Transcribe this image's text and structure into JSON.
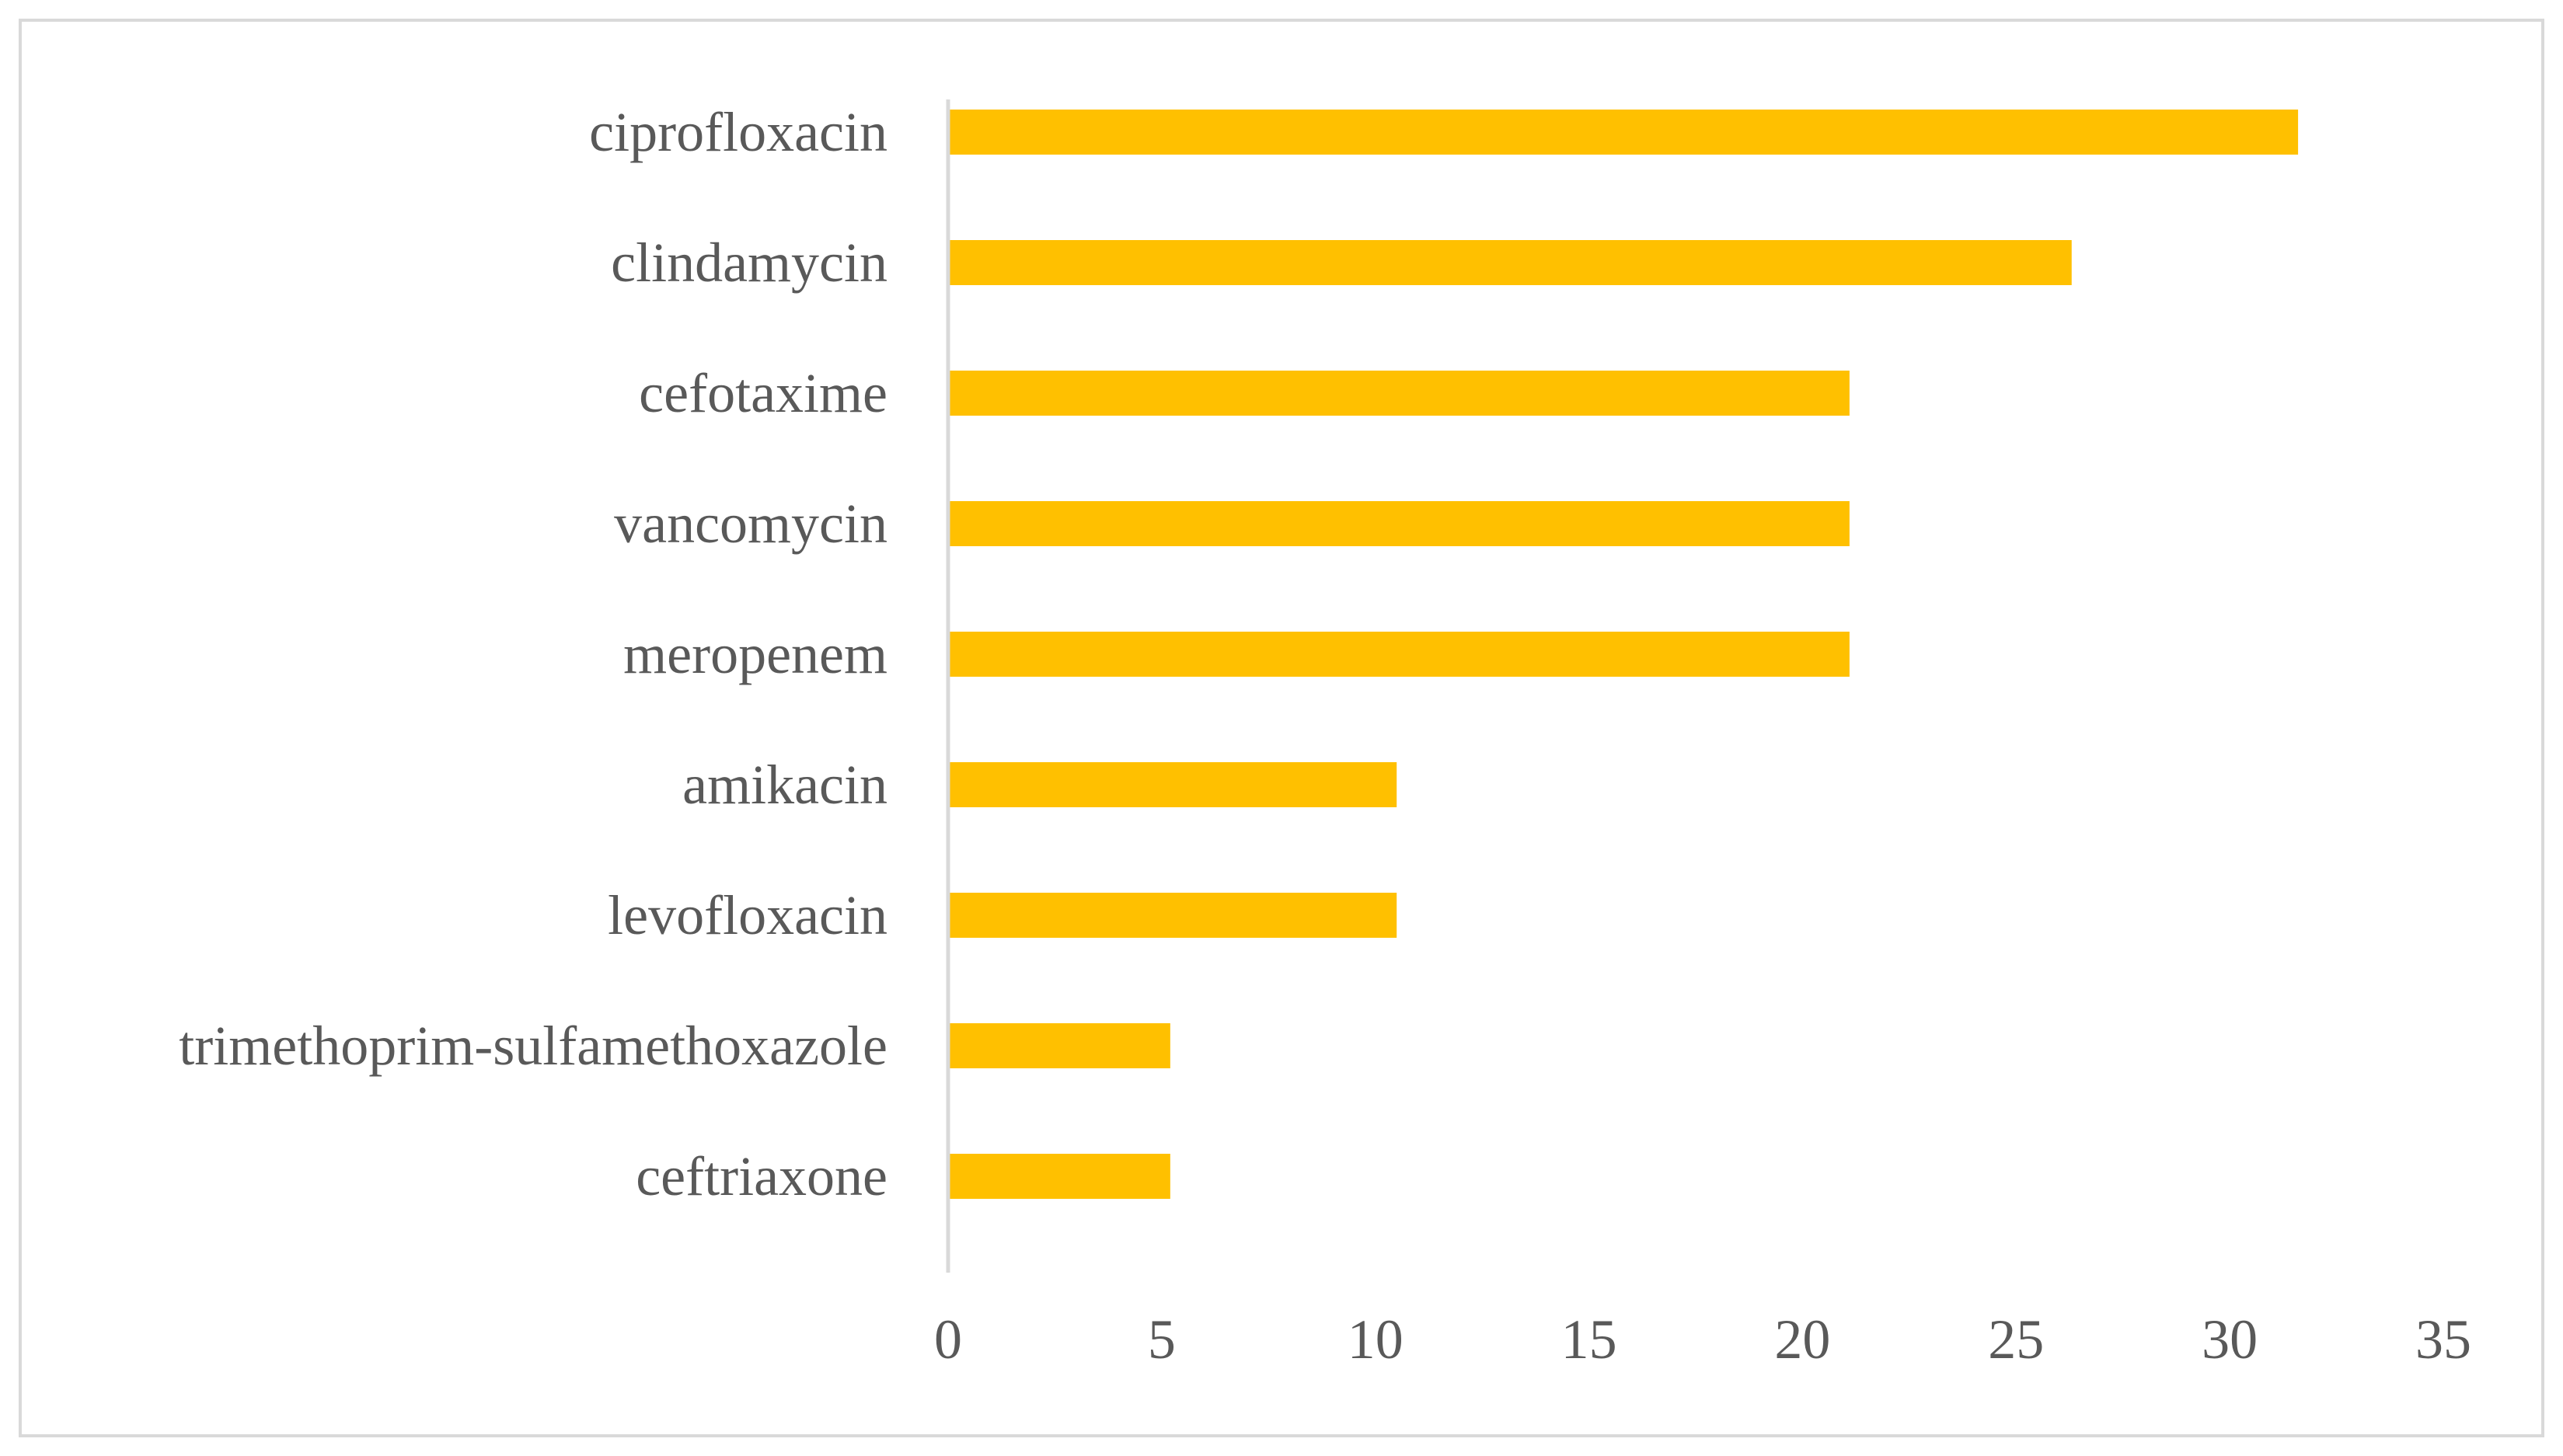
{
  "chart_data": {
    "type": "bar",
    "orientation": "horizontal",
    "categories": [
      "ciprofloxacin",
      "clindamycin",
      "cefotaxime",
      "vancomycin",
      "meropenem",
      "amikacin",
      "levofloxacin",
      "trimethoprim-sulfamethoxazole",
      "ceftriaxone"
    ],
    "values": [
      31.6,
      26.3,
      21.1,
      21.1,
      21.1,
      10.5,
      10.5,
      5.2,
      5.2
    ],
    "xlim": [
      0,
      35
    ],
    "xticks": [
      0,
      5,
      10,
      15,
      20,
      25,
      30,
      35
    ],
    "title": "",
    "xlabel": "",
    "ylabel": "",
    "grid": false,
    "legend": "none",
    "colors": {
      "bar": "#FFC000",
      "axis": "#D9D9D9",
      "text": "#595959",
      "frame": "#D9D9D9"
    }
  }
}
